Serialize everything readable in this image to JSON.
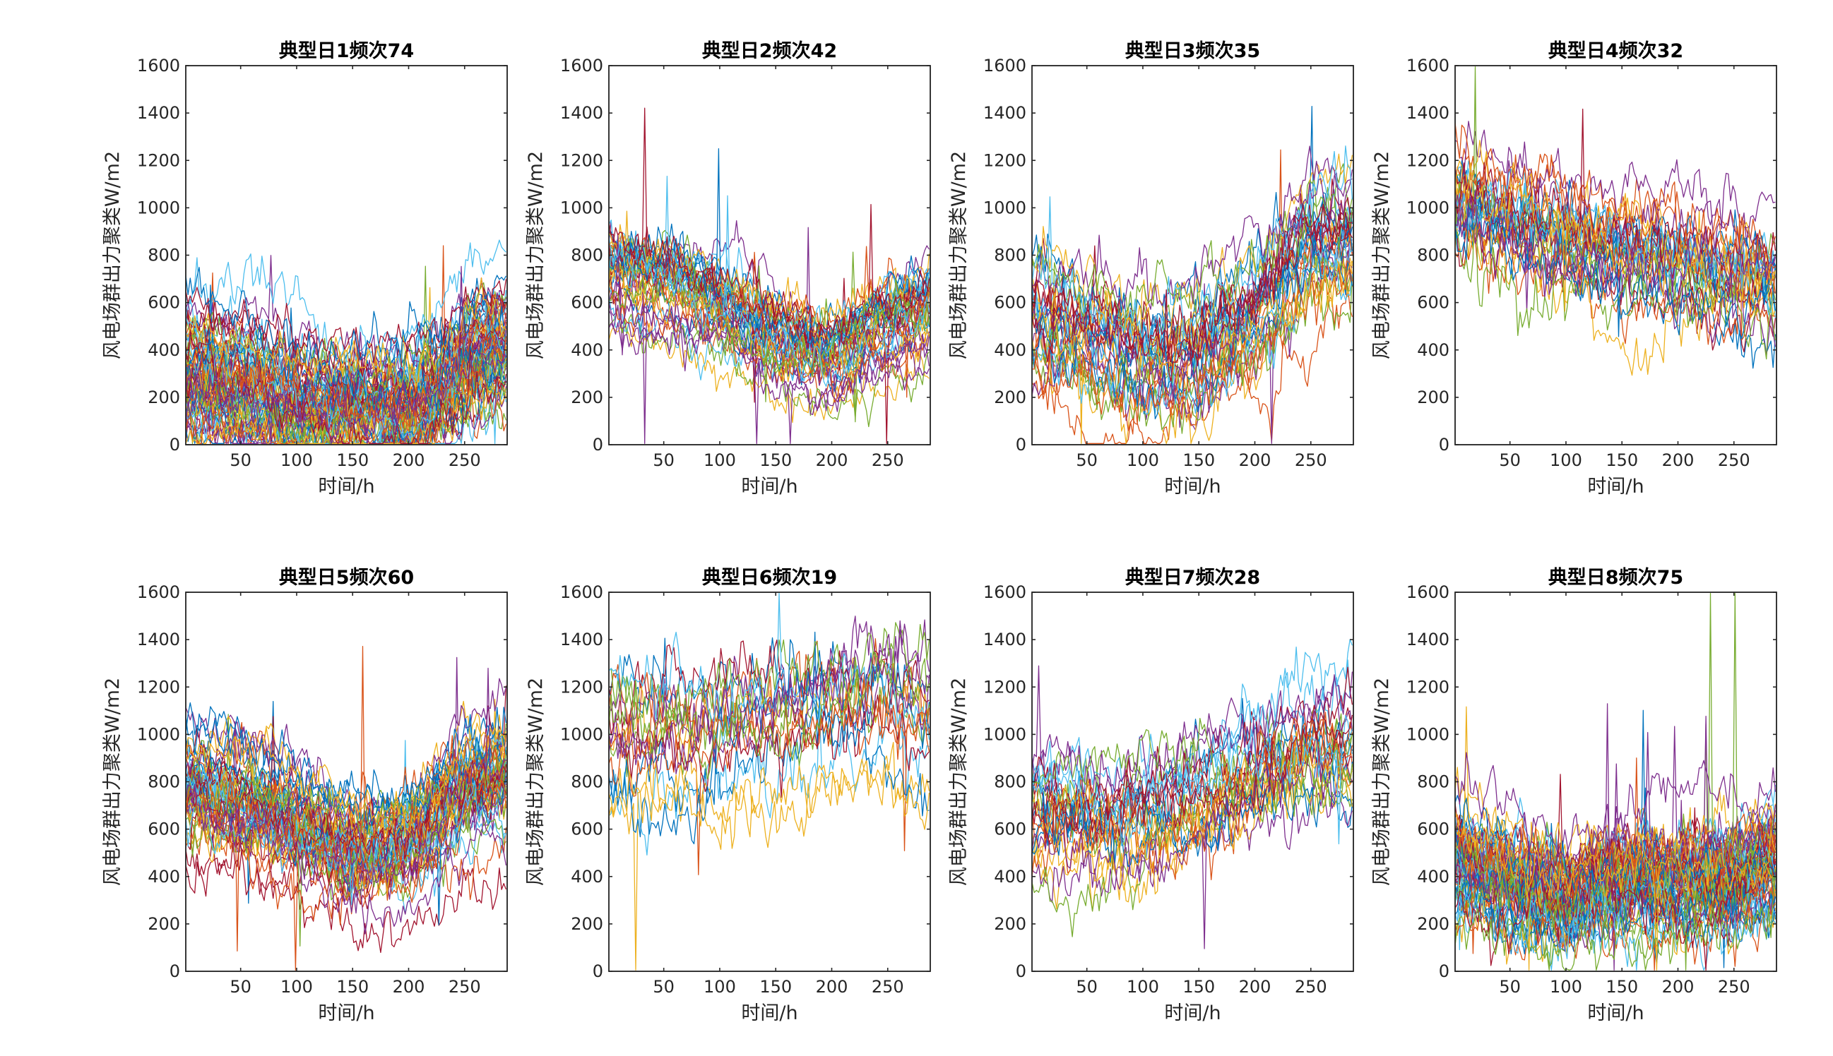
{
  "figure": {
    "colors": [
      "#0072BD",
      "#D95319",
      "#EDB120",
      "#7E2F8E",
      "#77AC30",
      "#4DBEEE",
      "#A2142F"
    ]
  },
  "chart_data": [
    {
      "type": "line",
      "title": "典型日1频次74",
      "xlabel": "时间/h",
      "ylabel": "风电场群出力聚类W/m2",
      "xlim": [
        1,
        288
      ],
      "ylim": [
        0,
        1600
      ],
      "xticks": [
        50,
        100,
        150,
        200,
        250
      ],
      "yticks": [
        0,
        200,
        400,
        600,
        800,
        1000,
        1200,
        1400,
        1600
      ],
      "frequency": 74,
      "profile": {
        "x": [
          0,
          50,
          100,
          150,
          200,
          230,
          260,
          288
        ],
        "y": [
          300,
          250,
          170,
          140,
          150,
          230,
          380,
          420
        ]
      },
      "spread": 130,
      "noise": 45,
      "n_series": 74
    },
    {
      "type": "line",
      "title": "典型日2频次42",
      "xlabel": "时间/h",
      "ylabel": "风电场群出力聚类W/m2",
      "xlim": [
        1,
        288
      ],
      "ylim": [
        0,
        1600
      ],
      "xticks": [
        50,
        100,
        150,
        200,
        250
      ],
      "yticks": [
        0,
        200,
        400,
        600,
        800,
        1000,
        1200,
        1400,
        1600
      ],
      "frequency": 42,
      "profile": {
        "x": [
          0,
          50,
          100,
          150,
          200,
          250,
          288
        ],
        "y": [
          760,
          700,
          600,
          480,
          400,
          520,
          580
        ]
      },
      "spread": 100,
      "noise": 40,
      "n_series": 42
    },
    {
      "type": "line",
      "title": "典型日3频次35",
      "xlabel": "时间/h",
      "ylabel": "风电场群出力聚类W/m2",
      "xlim": [
        1,
        288
      ],
      "ylim": [
        0,
        1600
      ],
      "xticks": [
        50,
        100,
        150,
        200,
        250
      ],
      "yticks": [
        0,
        200,
        400,
        600,
        800,
        1000,
        1200,
        1400,
        1600
      ],
      "frequency": 35,
      "profile": {
        "x": [
          0,
          50,
          100,
          150,
          200,
          250,
          288
        ],
        "y": [
          500,
          420,
          330,
          370,
          520,
          850,
          850
        ]
      },
      "spread": 120,
      "noise": 55,
      "n_series": 35
    },
    {
      "type": "line",
      "title": "典型日4频次32",
      "xlabel": "时间/h",
      "ylabel": "风电场群出力聚类W/m2",
      "xlim": [
        1,
        288
      ],
      "ylim": [
        0,
        1600
      ],
      "xticks": [
        50,
        100,
        150,
        200,
        250
      ],
      "yticks": [
        0,
        200,
        400,
        600,
        800,
        1000,
        1200,
        1400,
        1600
      ],
      "frequency": 32,
      "profile": {
        "x": [
          0,
          50,
          100,
          150,
          200,
          250,
          288
        ],
        "y": [
          1000,
          930,
          860,
          790,
          760,
          700,
          680
        ]
      },
      "spread": 110,
      "noise": 55,
      "n_series": 32
    },
    {
      "type": "line",
      "title": "典型日5频次60",
      "xlabel": "时间/h",
      "ylabel": "风电场群出力聚类W/m2",
      "xlim": [
        1,
        288
      ],
      "ylim": [
        0,
        1600
      ],
      "xticks": [
        50,
        100,
        150,
        200,
        250
      ],
      "yticks": [
        0,
        200,
        400,
        600,
        800,
        1000,
        1200,
        1400,
        1600
      ],
      "frequency": 60,
      "profile": {
        "x": [
          0,
          50,
          100,
          150,
          200,
          250,
          288
        ],
        "y": [
          780,
          720,
          620,
          500,
          530,
          750,
          820
        ]
      },
      "spread": 110,
      "noise": 45,
      "n_series": 60
    },
    {
      "type": "line",
      "title": "典型日6频次19",
      "xlabel": "时间/h",
      "ylabel": "风电场群出力聚类W/m2",
      "xlim": [
        1,
        288
      ],
      "ylim": [
        0,
        1600
      ],
      "xticks": [
        50,
        100,
        150,
        200,
        250
      ],
      "yticks": [
        0,
        200,
        400,
        600,
        800,
        1000,
        1200,
        1400,
        1600
      ],
      "frequency": 19,
      "profile": {
        "x": [
          0,
          50,
          100,
          150,
          200,
          250,
          288
        ],
        "y": [
          960,
          950,
          960,
          1000,
          1080,
          1100,
          1000
        ]
      },
      "spread": 150,
      "noise": 60,
      "n_series": 19
    },
    {
      "type": "line",
      "title": "典型日7频次28",
      "xlabel": "时间/h",
      "ylabel": "风电场群出力聚类W/m2",
      "xlim": [
        1,
        288
      ],
      "ylim": [
        0,
        1600
      ],
      "xticks": [
        50,
        100,
        150,
        200,
        250
      ],
      "yticks": [
        0,
        200,
        400,
        600,
        800,
        1000,
        1200,
        1400,
        1600
      ],
      "frequency": 28,
      "profile": {
        "x": [
          0,
          50,
          100,
          150,
          200,
          250,
          288
        ],
        "y": [
          700,
          660,
          680,
          760,
          850,
          960,
          950
        ]
      },
      "spread": 120,
      "noise": 55,
      "n_series": 28
    },
    {
      "type": "line",
      "title": "典型日8频次75",
      "xlabel": "时间/h",
      "ylabel": "风电场群出力聚类W/m2",
      "xlim": [
        1,
        288
      ],
      "ylim": [
        0,
        1600
      ],
      "xticks": [
        50,
        100,
        150,
        200,
        250
      ],
      "yticks": [
        0,
        200,
        400,
        600,
        800,
        1000,
        1200,
        1400,
        1600
      ],
      "frequency": 75,
      "profile": {
        "x": [
          0,
          50,
          100,
          150,
          200,
          250,
          288
        ],
        "y": [
          450,
          380,
          320,
          400,
          380,
          390,
          470
        ]
      },
      "spread": 110,
      "noise": 50,
      "n_series": 75
    }
  ]
}
